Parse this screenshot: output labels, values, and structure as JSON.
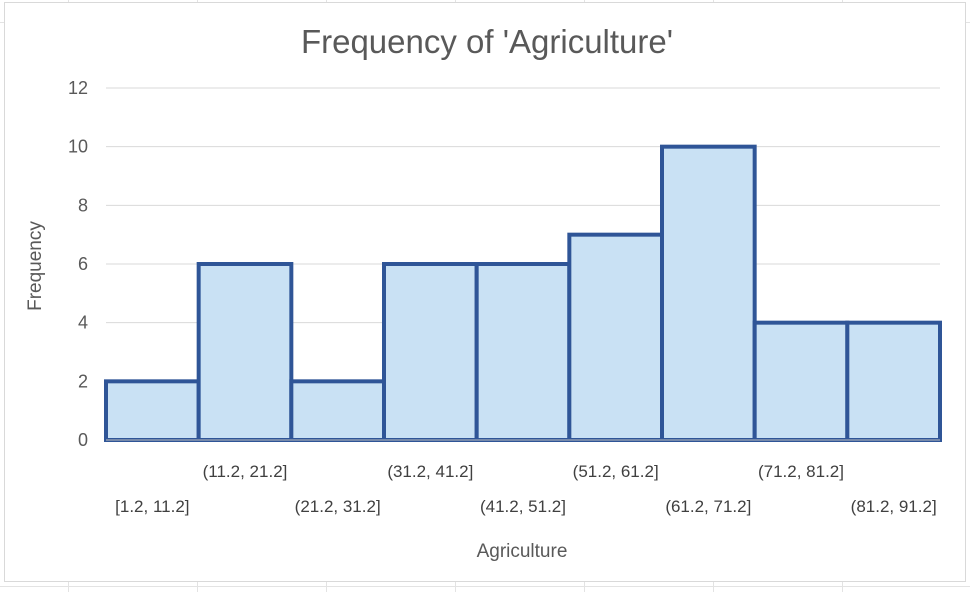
{
  "chart_data": {
    "type": "bar",
    "title": "Frequency of 'Agriculture'",
    "xlabel": "Agriculture",
    "ylabel": "Frequency",
    "ylim": [
      0,
      12
    ],
    "yticks": [
      0,
      2,
      4,
      6,
      8,
      10,
      12
    ],
    "grid": true,
    "legend": "none",
    "categories": [
      "[1.2, 11.2]",
      "(11.2, 21.2]",
      "(21.2, 31.2]",
      "(31.2, 41.2]",
      "(41.2, 51.2]",
      "(51.2, 61.2]",
      "(61.2, 71.2]",
      "(71.2, 81.2]",
      "(81.2, 91.2]"
    ],
    "values": [
      2,
      6,
      2,
      6,
      6,
      7,
      10,
      4,
      4
    ],
    "colors": {
      "bar_fill": "#c9e1f4",
      "bar_stroke": "#2f5597",
      "grid": "#d9d9d9",
      "text": "#595959"
    }
  }
}
